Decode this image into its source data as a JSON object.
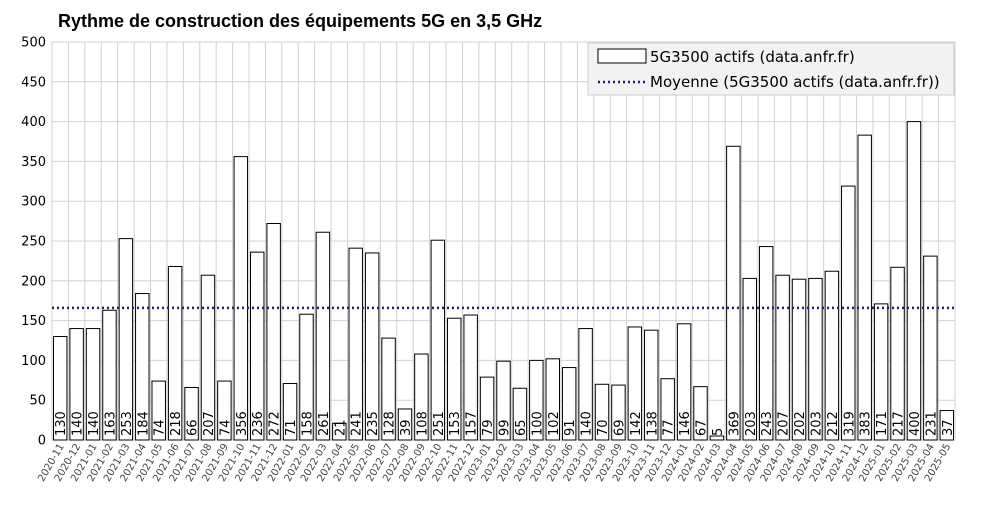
{
  "chart_data": {
    "type": "bar",
    "title": "Rythme de construction des équipements 5G en 3,5 GHz",
    "xlabel": "",
    "ylabel": "",
    "ylim": [
      0,
      500
    ],
    "yticks": [
      0,
      50,
      100,
      150,
      200,
      250,
      300,
      350,
      400,
      450,
      500
    ],
    "grid": true,
    "legend_position": "top-right",
    "categories": [
      "2020-11",
      "2020-12",
      "2021-01",
      "2021-02",
      "2021-03",
      "2021-04",
      "2021-05",
      "2021-06",
      "2021-07",
      "2021-08",
      "2021-09",
      "2021-10",
      "2021-11",
      "2021-12",
      "2022-01",
      "2022-02",
      "2022-03",
      "2022-04",
      "2022-05",
      "2022-06",
      "2022-07",
      "2022-08",
      "2022-09",
      "2022-10",
      "2022-11",
      "2022-12",
      "2023-01",
      "2023-02",
      "2023-03",
      "2023-04",
      "2023-05",
      "2023-06",
      "2023-07",
      "2023-08",
      "2023-09",
      "2023-10",
      "2023-11",
      "2023-12",
      "2024-01",
      "2024-02",
      "2024-03",
      "2024-04",
      "2024-05",
      "2024-06",
      "2024-07",
      "2024-08",
      "2024-09",
      "2024-10",
      "2024-11",
      "2024-12",
      "2025-01",
      "2025-02",
      "2025-03",
      "2025-04",
      "2025-05"
    ],
    "series": [
      {
        "name": "5G3500 actifs (data.anfr.fr)",
        "type": "bar",
        "values": [
          130,
          140,
          140,
          163,
          253,
          184,
          74,
          218,
          66,
          207,
          74,
          356,
          236,
          272,
          71,
          158,
          261,
          21,
          241,
          235,
          128,
          39,
          108,
          251,
          153,
          157,
          79,
          99,
          65,
          100,
          102,
          91,
          140,
          70,
          69,
          142,
          138,
          77,
          146,
          67,
          5,
          369,
          203,
          243,
          207,
          202,
          203,
          212,
          319,
          383,
          171,
          217,
          400,
          231,
          37
        ]
      },
      {
        "name": "Moyenne (5G3500 actifs (data.anfr.fr))",
        "type": "line",
        "value": 166
      }
    ],
    "colors": {
      "bar_fill": "#ffffff",
      "bar_stroke": "#000000",
      "mean_line": "#1f1f7a",
      "grid": "#d0d0d0"
    }
  }
}
